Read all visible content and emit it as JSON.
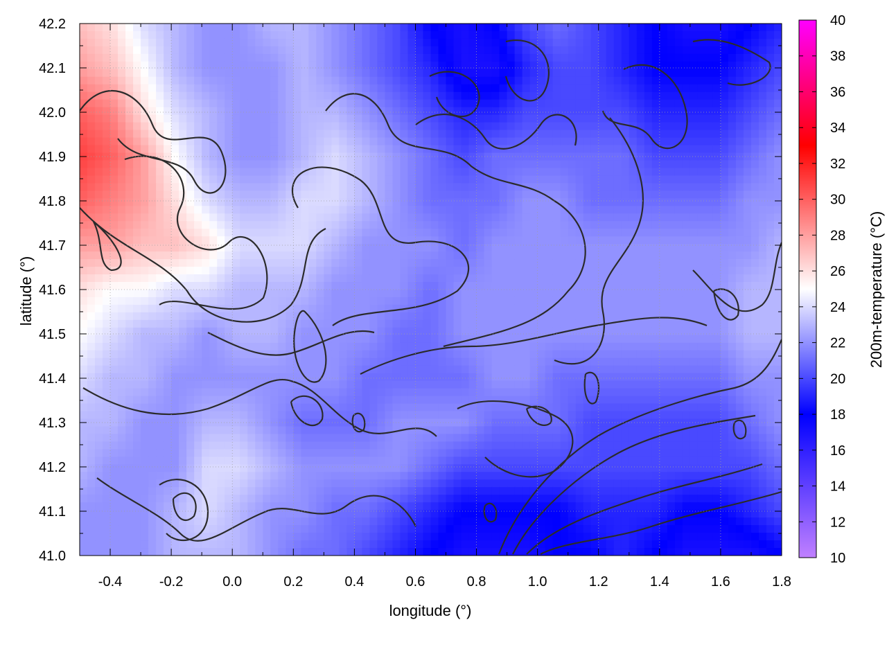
{
  "chart_data": {
    "type": "heatmap",
    "title": "",
    "xlabel": "longitude (°)",
    "ylabel": "latitude (°)",
    "colorbar_label": "200m-temperature (°C)",
    "xlim": [
      -0.5,
      1.8
    ],
    "ylim": [
      41.0,
      42.2
    ],
    "xticks": [
      -0.4,
      -0.2,
      0.0,
      0.2,
      0.4,
      0.6,
      0.8,
      1.0,
      1.2,
      1.4,
      1.6,
      1.8
    ],
    "xtick_labels": [
      "-0.4",
      "-0.2",
      "0.0",
      "0.2",
      "0.4",
      "0.6",
      "0.8",
      "1.0",
      "1.2",
      "1.4",
      "1.6",
      "1.8"
    ],
    "yticks": [
      41.0,
      41.1,
      41.2,
      41.3,
      41.4,
      41.5,
      41.6,
      41.7,
      41.8,
      41.9,
      42.0,
      42.1,
      42.2
    ],
    "ytick_labels": [
      "41.0",
      "41.1",
      "41.2",
      "41.3",
      "41.4",
      "41.5",
      "41.6",
      "41.7",
      "41.8",
      "41.9",
      "42.0",
      "42.1",
      "42.2"
    ],
    "colorbar_range": [
      10,
      40
    ],
    "colorbar_ticks": [
      10,
      12,
      14,
      16,
      18,
      20,
      22,
      24,
      26,
      28,
      30,
      32,
      34,
      36,
      38,
      40
    ],
    "colorbar_tick_labels": [
      "10",
      "12",
      "14",
      "16",
      "18",
      "20",
      "22",
      "24",
      "26",
      "28",
      "30",
      "32",
      "34",
      "36",
      "38",
      "40"
    ],
    "colormap": [
      {
        "value": 10,
        "color": "#c080ff"
      },
      {
        "value": 18,
        "color": "#0000ff"
      },
      {
        "value": 25,
        "color": "#ffffff"
      },
      {
        "value": 33,
        "color": "#ff0000"
      },
      {
        "value": 40,
        "color": "#ff00ff"
      }
    ],
    "grid": true,
    "grid_values": [
      [
        27,
        26,
        24,
        23,
        22,
        22,
        23,
        23,
        22,
        21,
        20,
        18,
        17,
        18,
        20,
        21,
        20,
        19,
        18,
        17,
        17,
        18,
        19
      ],
      [
        28,
        27,
        25,
        23,
        22,
        22,
        22,
        23,
        22,
        21,
        20,
        19,
        17,
        17,
        19,
        20,
        20,
        19,
        18,
        18,
        18,
        19,
        20
      ],
      [
        30,
        29,
        26,
        24,
        23,
        22,
        22,
        23,
        23,
        22,
        21,
        20,
        19,
        19,
        20,
        20,
        20,
        20,
        19,
        19,
        19,
        20,
        21
      ],
      [
        31,
        30,
        28,
        25,
        23,
        22,
        22,
        23,
        24,
        23,
        22,
        21,
        20,
        21,
        21,
        21,
        21,
        21,
        20,
        20,
        20,
        21,
        22
      ],
      [
        30,
        29,
        28,
        26,
        24,
        23,
        23,
        24,
        24,
        23,
        22,
        21,
        21,
        21,
        22,
        22,
        21,
        21,
        21,
        21,
        21,
        22,
        22
      ],
      [
        28,
        28,
        27,
        27,
        26,
        24,
        24,
        24,
        23,
        22,
        22,
        22,
        21,
        22,
        22,
        22,
        22,
        22,
        22,
        22,
        22,
        22,
        23
      ],
      [
        26,
        25,
        25,
        24,
        24,
        23,
        23,
        23,
        22,
        22,
        22,
        21,
        22,
        22,
        22,
        22,
        22,
        22,
        22,
        22,
        22,
        23,
        23
      ],
      [
        25,
        24,
        23,
        23,
        22,
        23,
        23,
        22,
        22,
        22,
        21,
        21,
        22,
        22,
        22,
        22,
        22,
        22,
        22,
        22,
        22,
        23,
        23
      ],
      [
        24,
        23,
        23,
        22,
        22,
        22,
        22,
        22,
        22,
        21,
        21,
        21,
        21,
        22,
        22,
        21,
        21,
        21,
        21,
        21,
        21,
        22,
        22
      ],
      [
        23,
        23,
        22,
        22,
        23,
        23,
        22,
        21,
        21,
        21,
        22,
        22,
        22,
        21,
        21,
        21,
        20,
        20,
        20,
        20,
        20,
        21,
        22
      ],
      [
        23,
        22,
        22,
        22,
        24,
        24,
        23,
        22,
        22,
        22,
        22,
        21,
        20,
        20,
        20,
        20,
        20,
        20,
        20,
        20,
        20,
        20,
        21
      ],
      [
        22,
        22,
        22,
        23,
        24,
        23,
        22,
        22,
        21,
        21,
        20,
        19,
        18,
        18,
        18,
        18,
        19,
        19,
        19,
        18,
        18,
        19,
        20
      ],
      [
        22,
        22,
        22,
        23,
        23,
        23,
        22,
        21,
        21,
        20,
        19,
        18,
        17,
        17,
        17,
        18,
        18,
        19,
        18,
        17,
        17,
        17,
        18
      ]
    ]
  }
}
